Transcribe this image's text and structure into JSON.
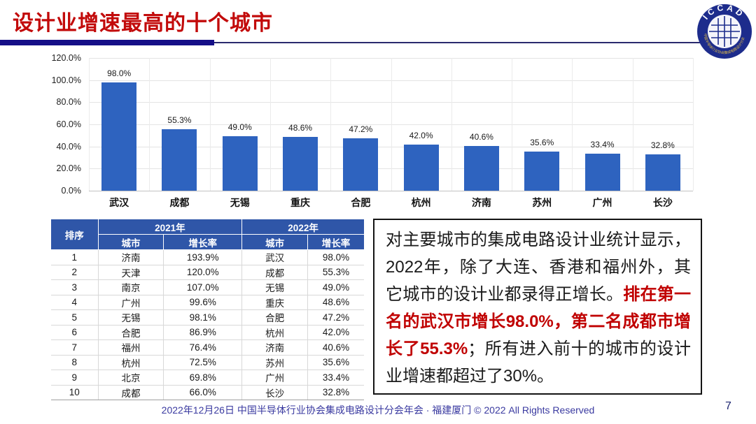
{
  "header": {
    "title": "设计业增速最高的十个城市"
  },
  "logo": {
    "acronym": "ICCAD",
    "ring_text": "中国半导体行业协会集成电路设计分会",
    "ring_color": "#1d2c8c",
    "accent_color": "#d9b64a"
  },
  "chart_data": {
    "type": "bar",
    "title": "",
    "xlabel": "",
    "ylabel": "",
    "categories": [
      "武汉",
      "成都",
      "无锡",
      "重庆",
      "合肥",
      "杭州",
      "济南",
      "苏州",
      "广州",
      "长沙"
    ],
    "values": [
      98.0,
      55.3,
      49.0,
      48.6,
      47.2,
      42.0,
      40.6,
      35.6,
      33.4,
      32.8
    ],
    "data_labels": [
      "98.0%",
      "55.3%",
      "49.0%",
      "48.6%",
      "47.2%",
      "42.0%",
      "40.6%",
      "35.6%",
      "33.4%",
      "32.8%"
    ],
    "y_ticks": [
      "120.0%",
      "100.0%",
      "80.0%",
      "60.0%",
      "40.0%",
      "20.0%",
      "0.0%"
    ],
    "ylim": [
      0,
      120
    ],
    "grid": true,
    "legend": "none",
    "bar_color": "#2e63bf"
  },
  "table": {
    "headers": {
      "rank": "排序",
      "year_2021": "2021年",
      "year_2022": "2022年",
      "city": "城市",
      "growth": "增长率"
    },
    "rows": [
      {
        "rank": "1",
        "city2021": "济南",
        "growth2021": "193.9%",
        "city2022": "武汉",
        "growth2022": "98.0%"
      },
      {
        "rank": "2",
        "city2021": "天津",
        "growth2021": "120.0%",
        "city2022": "成都",
        "growth2022": "55.3%"
      },
      {
        "rank": "3",
        "city2021": "南京",
        "growth2021": "107.0%",
        "city2022": "无锡",
        "growth2022": "49.0%"
      },
      {
        "rank": "4",
        "city2021": "广州",
        "growth2021": "99.6%",
        "city2022": "重庆",
        "growth2022": "48.6%"
      },
      {
        "rank": "5",
        "city2021": "无锡",
        "growth2021": "98.1%",
        "city2022": "合肥",
        "growth2022": "47.2%"
      },
      {
        "rank": "6",
        "city2021": "合肥",
        "growth2021": "86.9%",
        "city2022": "杭州",
        "growth2022": "42.0%"
      },
      {
        "rank": "7",
        "city2021": "福州",
        "growth2021": "76.4%",
        "city2022": "济南",
        "growth2022": "40.6%"
      },
      {
        "rank": "8",
        "city2021": "杭州",
        "growth2021": "72.5%",
        "city2022": "苏州",
        "growth2022": "35.6%"
      },
      {
        "rank": "9",
        "city2021": "北京",
        "growth2021": "69.8%",
        "city2022": "广州",
        "growth2022": "33.4%"
      },
      {
        "rank": "10",
        "city2021": "成都",
        "growth2021": "66.0%",
        "city2022": "长沙",
        "growth2022": "32.8%"
      }
    ],
    "header_bg": "#2f56a8"
  },
  "text_box": {
    "segments": [
      {
        "text": "对主要城市的集成电路设计业统计显示，2022年，除了大连、香港和福州外，其它城市的设计业都录得正增长。",
        "emphasis": false
      },
      {
        "text": "排在第一名的武汉市增长98.0%，第二名成都市增长了55.3%",
        "emphasis": true
      },
      {
        "text": "；所有进入前十的城市的设计业增速都超过了30%。",
        "emphasis": false
      }
    ],
    "emphasis_color": "#c00000"
  },
  "footer": {
    "text": "2022年12月26日 中国半导体行业协会集成电路设计分会年会 · 福建厦门 © 2022 All Rights Reserved",
    "page": "7"
  }
}
